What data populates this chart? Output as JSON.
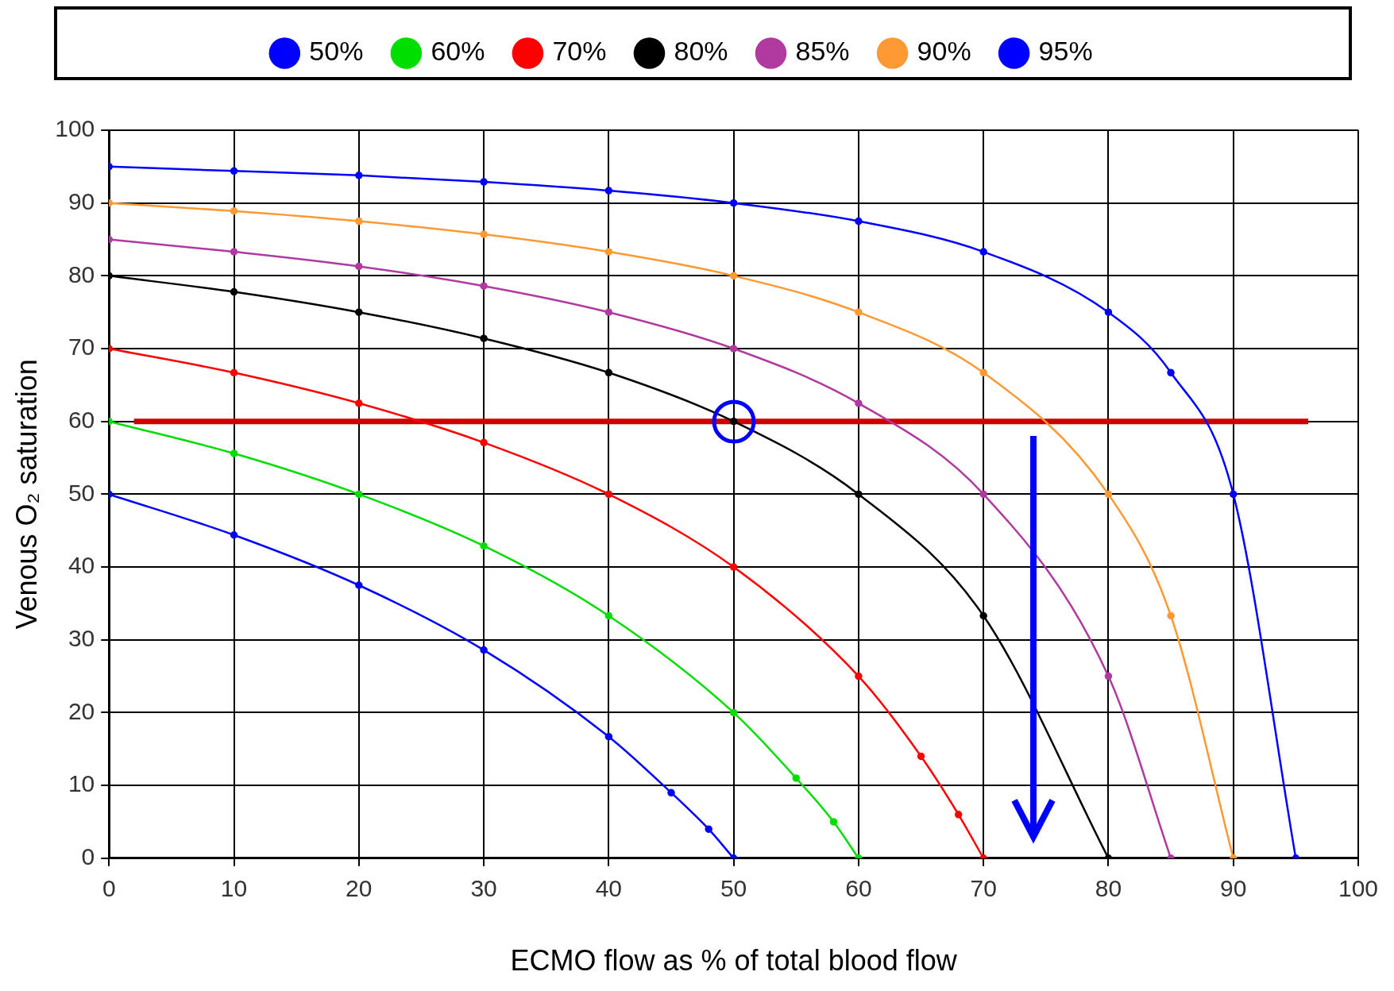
{
  "chart_data": {
    "type": "line",
    "xlabel": "ECMO flow as % of total blood flow",
    "ylabel": "Venous O₂ saturation",
    "xlim": [
      0,
      100
    ],
    "xticks": [
      0,
      10,
      20,
      30,
      40,
      50,
      60,
      70,
      80,
      90,
      100
    ],
    "ylim": [
      0,
      100
    ],
    "yticks": [
      0,
      10,
      20,
      30,
      40,
      50,
      60,
      70,
      80,
      90,
      100
    ],
    "grid": true,
    "legend": "top",
    "marker": "circle",
    "line_style": "solid",
    "series": [
      {
        "name": "50%",
        "color": "#0000ff",
        "x": [
          0,
          10,
          20,
          30,
          40,
          45,
          48,
          50
        ],
        "values": [
          50,
          44.4,
          37.5,
          28.6,
          16.7,
          9,
          4,
          0
        ]
      },
      {
        "name": "60%",
        "color": "#00dd00",
        "x": [
          0,
          10,
          20,
          30,
          40,
          50,
          55,
          58,
          60
        ],
        "values": [
          60,
          55.6,
          50,
          42.9,
          33.3,
          20,
          11,
          5,
          0
        ]
      },
      {
        "name": "70%",
        "color": "#ff0000",
        "x": [
          0,
          10,
          20,
          30,
          40,
          50,
          60,
          65,
          68,
          70
        ],
        "values": [
          70,
          66.7,
          62.5,
          57.1,
          50,
          40,
          25,
          14,
          6,
          0
        ]
      },
      {
        "name": "80%",
        "color": "#000000",
        "x": [
          0,
          10,
          20,
          30,
          40,
          50,
          60,
          70,
          80
        ],
        "values": [
          80,
          77.8,
          75,
          71.4,
          66.7,
          60,
          50,
          33.3,
          0
        ]
      },
      {
        "name": "85%",
        "color": "#b03aa0",
        "x": [
          0,
          10,
          20,
          30,
          40,
          50,
          60,
          70,
          80,
          85
        ],
        "values": [
          85,
          83.3,
          81.3,
          78.6,
          75,
          70,
          62.5,
          50,
          25,
          0
        ]
      },
      {
        "name": "90%",
        "color": "#ff9933",
        "x": [
          0,
          10,
          20,
          30,
          40,
          50,
          60,
          70,
          80,
          85,
          90
        ],
        "values": [
          90,
          88.9,
          87.5,
          85.7,
          83.3,
          80,
          75,
          66.7,
          50,
          33.3,
          0
        ]
      },
      {
        "name": "95%",
        "color": "#0000ff",
        "x": [
          0,
          10,
          20,
          30,
          40,
          50,
          60,
          70,
          80,
          85,
          90,
          95
        ],
        "values": [
          95,
          94.4,
          93.8,
          92.9,
          91.7,
          90,
          87.5,
          83.3,
          75,
          66.7,
          50,
          0
        ]
      }
    ],
    "ref_lines": [
      {
        "axis": "y",
        "value": 60,
        "color": "#cc0000"
      }
    ]
  }
}
